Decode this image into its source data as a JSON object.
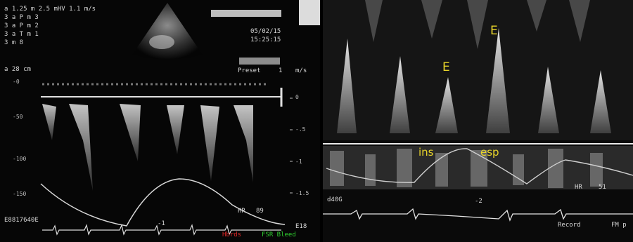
{
  "left_panel": {
    "header_line": "a 1.25  m 2.5  mHV   1.1 m/s",
    "params": [
      "3  a P  m 3",
      "3  a P  m 2",
      "3  a T  m 1",
      "3  m 8"
    ],
    "date": "05/02/15",
    "time": "15:25:15",
    "depth": "a 28 cm",
    "preset_label": "Preset",
    "preset_value": "1",
    "preset_unit": "m/s",
    "y_ticks": [
      "-0",
      "-50",
      "-100",
      "-150"
    ],
    "right_ticks": [
      "0",
      "-.5",
      "-1",
      "-1.5"
    ],
    "hr_label": "HR",
    "hr_value": "89",
    "id_text": "E8817640E",
    "bottom_small": "-1",
    "legend_red": "Hbrds",
    "legend_green": "FSR Bleed",
    "corner_tag": "E18"
  },
  "right_panel": {
    "peak_label_1": "E",
    "peak_label_2": "E",
    "resp_label_ins": "ins",
    "resp_label_esp": "esp",
    "hr_label": "HR",
    "hr_value": "51",
    "ecg_lead": "d40G",
    "ecg_scale": "-2",
    "record_label": "Record",
    "record_tail": "FM p"
  },
  "colors": {
    "background": "#060606",
    "doppler": "#e6e6e6",
    "annotation": "#e8d42a",
    "marker_red": "#e02828",
    "marker_green": "#2fd02f"
  }
}
